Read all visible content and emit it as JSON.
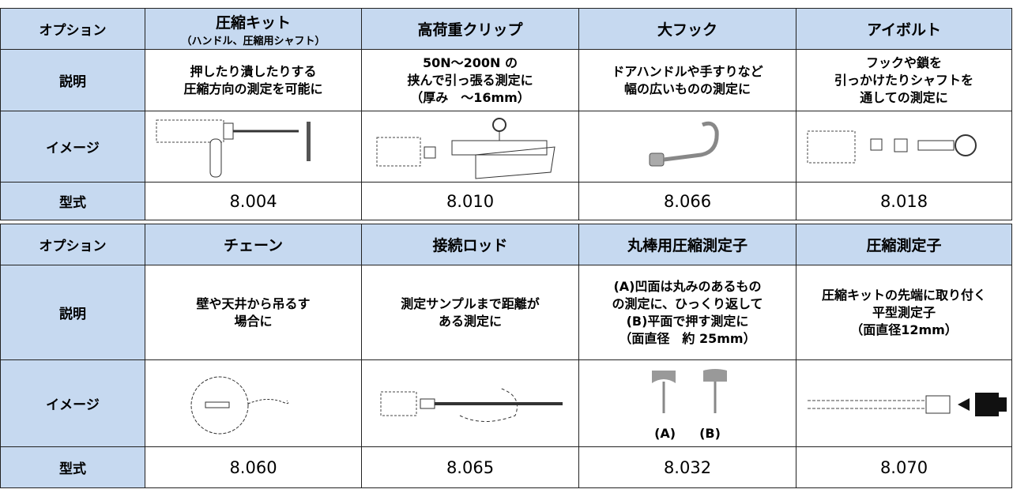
{
  "tables": [
    {
      "row_labels": [
        "オプション",
        "説明",
        "イメージ",
        "型式"
      ],
      "columns": [
        {
          "name": "圧縮キット",
          "sub": "（ハンドル、圧縮用シャフト）",
          "description": [
            "押したり潰したりする",
            "圧縮方向の測定を可能に"
          ],
          "model": "8.004"
        },
        {
          "name": "高荷重クリップ",
          "description": [
            "50N～200N の",
            "挟んで引っ張る測定に",
            "（厚み　～16mm）"
          ],
          "model": "8.010"
        },
        {
          "name": "大フック",
          "description": [
            "ドアハンドルや手すりなど",
            "幅の広いものの測定に"
          ],
          "model": "8.066"
        },
        {
          "name": "アイボルト",
          "description": [
            "フックや鎖を",
            "引っかけたりシャフトを",
            "通しての測定に"
          ],
          "model": "8.018"
        }
      ]
    },
    {
      "row_labels": [
        "オプション",
        "説明",
        "イメージ",
        "型式"
      ],
      "columns": [
        {
          "name": "チェーン",
          "description": [
            "壁や天井から吊るす",
            "場合に"
          ],
          "model": "8.060"
        },
        {
          "name": "接続ロッド",
          "description": [
            "測定サンプルまで距離が",
            "ある測定に"
          ],
          "model": "8.065"
        },
        {
          "name": "丸棒用圧縮測定子",
          "description": [
            "(A)凹面は丸みのあるもの",
            "の測定に、ひっくり返して",
            "(B)平面で押す測定に",
            "（面直径　約 25mm）"
          ],
          "image_labels": [
            "(A)",
            "(B)"
          ],
          "model": "8.032"
        },
        {
          "name": "圧縮測定子",
          "description": [
            "圧縮キットの先端に取り付く",
            "平型測定子",
            "（面直径12mm）"
          ],
          "model": "8.070"
        }
      ]
    }
  ]
}
